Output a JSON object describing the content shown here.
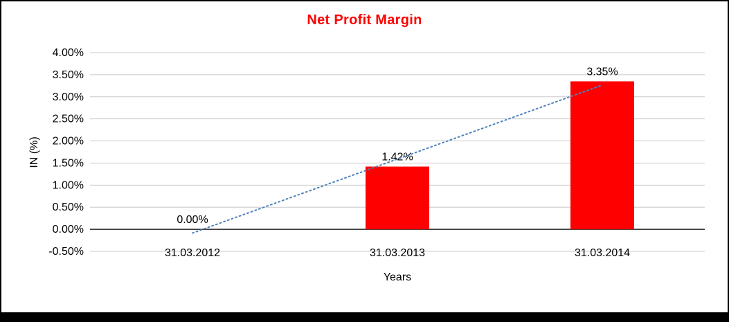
{
  "chart_data": {
    "type": "bar",
    "title": "Net Profit Margin",
    "ylabel": "IN (%)",
    "xlabel": "Years",
    "categories": [
      "31.03.2012",
      "31.03.2013",
      "31.03.2014"
    ],
    "values": [
      0.0,
      1.42,
      3.35
    ],
    "data_labels": [
      "0.00%",
      "1.42%",
      "3.35%"
    ],
    "ylim": [
      -0.5,
      4.0
    ],
    "ytick_step": 0.5,
    "ytick_labels_top_to_bottom": [
      "4.00%",
      "3.50%",
      "3.00%",
      "2.50%",
      "2.00%",
      "1.50%",
      "1.00%",
      "0.50%",
      "0.00%",
      "-0.50%"
    ],
    "grid": true,
    "legend_position": "none",
    "trendline": {
      "type": "linear",
      "style": "dotted"
    },
    "colors": {
      "bar": "#FF0000",
      "title": "#FF0000",
      "axis": "#000000",
      "grid": "#C8C8C8",
      "trendline": "#4F81BD",
      "text": "#000000"
    }
  }
}
